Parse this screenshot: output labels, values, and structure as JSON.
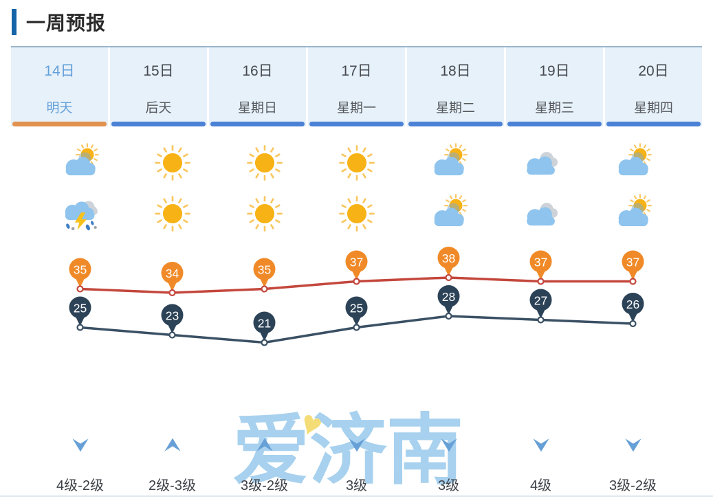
{
  "header": {
    "title": "一周预报"
  },
  "days": [
    {
      "date": "14日",
      "label": "明天",
      "active": true,
      "day_icon": "sun-behind-cloud",
      "night_icon": "thunderstorm",
      "high": 35,
      "low": 25,
      "wind_arrow": "down",
      "wind_level": "4级-2级"
    },
    {
      "date": "15日",
      "label": "后天",
      "active": false,
      "day_icon": "sunny",
      "night_icon": "sunny",
      "high": 34,
      "low": 23,
      "wind_arrow": "up",
      "wind_level": "2级-3级"
    },
    {
      "date": "16日",
      "label": "星期日",
      "active": false,
      "day_icon": "sunny",
      "night_icon": "sunny",
      "high": 35,
      "low": 21,
      "wind_arrow": "up",
      "wind_level": "3级-2级"
    },
    {
      "date": "17日",
      "label": "星期一",
      "active": false,
      "day_icon": "sunny",
      "night_icon": "sunny",
      "high": 37,
      "low": 25,
      "wind_arrow": "down",
      "wind_level": "3级"
    },
    {
      "date": "18日",
      "label": "星期二",
      "active": false,
      "day_icon": "sun-behind-cloud",
      "night_icon": "sun-behind-cloud",
      "high": 38,
      "low": 28,
      "wind_arrow": "down",
      "wind_level": "3级"
    },
    {
      "date": "19日",
      "label": "星期三",
      "active": false,
      "day_icon": "cloudy",
      "night_icon": "cloudy",
      "high": 37,
      "low": 27,
      "wind_arrow": "down",
      "wind_level": "4级"
    },
    {
      "date": "20日",
      "label": "星期四",
      "active": false,
      "day_icon": "sun-behind-cloud",
      "night_icon": "sun-behind-cloud",
      "high": 37,
      "low": 26,
      "wind_arrow": "down",
      "wind_level": "3级-2级"
    }
  ],
  "chart_data": {
    "type": "line",
    "categories": [
      "14日",
      "15日",
      "16日",
      "17日",
      "18日",
      "19日",
      "20日"
    ],
    "series": [
      {
        "name": "high",
        "values": [
          35,
          34,
          35,
          37,
          38,
          37,
          37
        ],
        "line_color": "#c4473c",
        "pin_color": "#f08a28"
      },
      {
        "name": "low",
        "values": [
          25,
          23,
          21,
          25,
          28,
          27,
          26
        ],
        "line_color": "#3a5064",
        "pin_color": "#2c4257"
      }
    ],
    "value_labels": "inside-pin-markers",
    "grid": false,
    "legend": "none"
  },
  "watermark": {
    "text": "爱济南",
    "heart": "♥",
    "color": "#a7d1ee",
    "heart_color": "#f4dc76"
  },
  "colors": {
    "accent": "#1465a8",
    "tab_bg": "#e7f1fa",
    "tab_active_text": "#63a0d8",
    "tab_text": "#45494e",
    "underline_active": "#e0924e",
    "underline": "#4c82d5",
    "high_line": "#c4473c",
    "high_pin": "#f08a28",
    "low_line": "#3a5064",
    "low_pin": "#2c4257",
    "wind_arrow": "#67a0d6",
    "sun": "#f7b216",
    "sun_rays": "#f9c760",
    "cloud_blue": "#8ec4ee",
    "cloud_gray": "#cdd3d9"
  }
}
